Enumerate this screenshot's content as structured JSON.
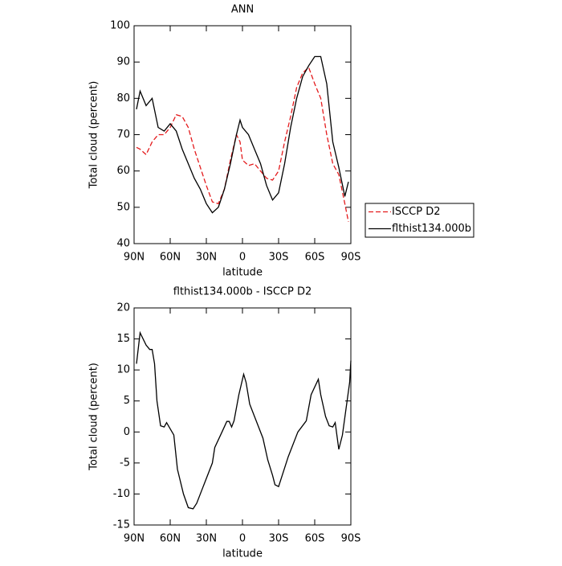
{
  "chart_data": [
    {
      "type": "line",
      "title": "ANN",
      "xlabel": "latitude",
      "ylabel": "Total cloud (percent)",
      "x": [
        88,
        85,
        80,
        75,
        70,
        65,
        60,
        55,
        50,
        45,
        40,
        35,
        30,
        25,
        20,
        15,
        10,
        5,
        2,
        0,
        -5,
        -10,
        -15,
        -20,
        -25,
        -30,
        -35,
        -40,
        -45,
        -50,
        -55,
        -60,
        -65,
        -70,
        -75,
        -80,
        -85,
        -88
      ],
      "series": [
        {
          "name": "ISCCP D2",
          "color": "#e41a1c",
          "line_style": "dashed",
          "values": [
            66.5,
            66,
            64.5,
            68,
            70,
            70,
            72,
            75.5,
            75,
            72,
            66,
            61,
            56,
            51.5,
            51,
            55,
            63,
            70,
            68,
            63,
            61.5,
            62,
            60,
            58,
            57.5,
            60,
            68,
            75,
            83,
            87,
            88.5,
            84,
            80,
            70,
            62,
            59,
            51,
            46
          ]
        },
        {
          "name": "flthist134.000b",
          "color": "#000000",
          "line_style": "solid",
          "values": [
            77,
            82,
            78,
            80,
            72,
            71,
            73,
            71,
            66,
            62,
            58,
            55,
            51,
            48.5,
            50,
            55,
            62,
            70,
            74,
            72,
            70,
            66,
            62,
            56,
            52,
            54,
            62,
            72,
            80,
            86,
            89,
            91.5,
            91.5,
            84,
            68,
            61,
            53,
            57
          ]
        }
      ],
      "xlim": [
        90,
        -90
      ],
      "xticks": [
        {
          "value": 90,
          "label": "90N"
        },
        {
          "value": 60,
          "label": "60N"
        },
        {
          "value": 30,
          "label": "30N"
        },
        0,
        {
          "value": -30,
          "label": "30S"
        },
        {
          "value": -60,
          "label": "60S"
        },
        {
          "value": -90,
          "label": "90S"
        }
      ],
      "ylim": [
        40,
        100
      ],
      "yticks": [
        40,
        50,
        60,
        70,
        80,
        90,
        100
      ],
      "legend": "right"
    },
    {
      "type": "line",
      "title": "flthist134.000b - ISCCP D2",
      "xlabel": "latitude",
      "ylabel": "Total cloud (percent)",
      "x": [
        88,
        85,
        80,
        77,
        75,
        73,
        71,
        68,
        65,
        63,
        57,
        54,
        49,
        45,
        41,
        38,
        33,
        31,
        25,
        23,
        17,
        13,
        11,
        9,
        7,
        3,
        -1,
        -3,
        -6,
        -11,
        -17,
        -21,
        -25,
        -27,
        -30,
        -33,
        -38,
        -46,
        -53,
        -57,
        -63,
        -65,
        -69,
        -72,
        -75,
        -77,
        -80,
        -83,
        -89,
        -90
      ],
      "values": [
        11,
        16,
        14,
        13.3,
        13.3,
        11,
        5,
        1,
        0.8,
        1.5,
        -0.5,
        -6,
        -10,
        -12.2,
        -12.4,
        -11.5,
        -9,
        -8,
        -5,
        -2.5,
        0,
        1.7,
        1.7,
        0.8,
        1.8,
        6,
        9.3,
        8,
        4.5,
        2,
        -1,
        -4.5,
        -7,
        -8.5,
        -8.8,
        -7,
        -4,
        0,
        1.8,
        6,
        8.5,
        6,
        2.5,
        1,
        0.8,
        1.5,
        -2.8,
        -0.5,
        8,
        11.5
      ],
      "color": "#000000",
      "xlim": [
        90,
        -90
      ],
      "xticks": [
        {
          "value": 90,
          "label": "90N"
        },
        {
          "value": 60,
          "label": "60N"
        },
        {
          "value": 30,
          "label": "30N"
        },
        0,
        {
          "value": -30,
          "label": "30S"
        },
        {
          "value": -60,
          "label": "60S"
        },
        {
          "value": -90,
          "label": "90S"
        }
      ],
      "ylim": [
        -15,
        20
      ],
      "yticks": [
        -15,
        -10,
        -5,
        0,
        5,
        10,
        15,
        20
      ]
    }
  ]
}
